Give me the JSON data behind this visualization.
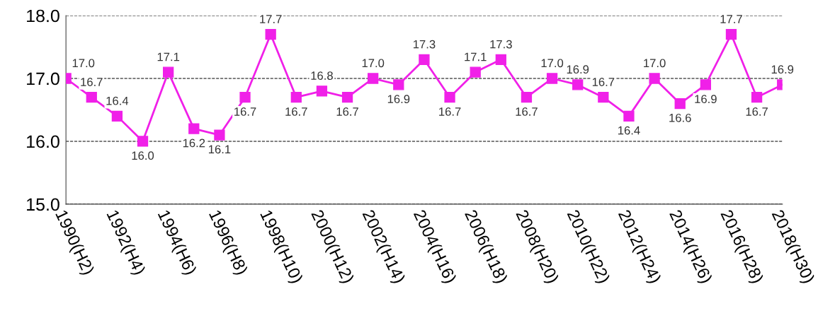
{
  "chart_data": {
    "type": "line",
    "categories": [
      "1990(H2)",
      null,
      "1992(H4)",
      null,
      "1994(H6)",
      null,
      "1996(H8)",
      null,
      "1998(H10)",
      null,
      "2000(H12)",
      null,
      "2002(H14)",
      null,
      "2004(H16)",
      null,
      "2006(H18)",
      null,
      "2008(H20)",
      null,
      "2010(H22)",
      null,
      "2012(H24)",
      null,
      "2014(H26)",
      null,
      "2016(H28)",
      null,
      "2018(H30)"
    ],
    "series": [
      {
        "color": "#f020e8",
        "values": [
          17.0,
          16.7,
          16.4,
          16.0,
          17.1,
          16.2,
          16.1,
          16.7,
          17.7,
          16.7,
          16.8,
          16.7,
          17.0,
          16.9,
          17.3,
          16.7,
          17.1,
          17.3,
          16.7,
          17.0,
          16.9,
          16.7,
          16.4,
          17.0,
          16.6,
          16.9,
          17.7,
          16.7,
          16.9
        ],
        "value_labels": [
          "17.0",
          "16.7",
          "16.4",
          "16.0",
          "17.1",
          "16.2",
          "16.1",
          "16.7",
          "17.7",
          "16.7",
          "16.8",
          "16.7",
          "17.0",
          "16.9",
          "17.3",
          "16.7",
          "17.1",
          "17.3",
          "16.7",
          "17.0",
          "16.9",
          "16.7",
          "16.4",
          "17.0",
          "16.6",
          "16.9",
          "17.7",
          "16.7",
          "16.9"
        ]
      }
    ],
    "ylim": [
      15.0,
      18.0
    ],
    "yticks": [
      {
        "value": 15.0,
        "label": "15.0"
      },
      {
        "value": 16.0,
        "label": "16.0"
      },
      {
        "value": 17.0,
        "label": "17.0"
      },
      {
        "value": 18.0,
        "label": "18.0"
      }
    ],
    "grid": "y",
    "marker": "square",
    "line_style": "solid"
  }
}
